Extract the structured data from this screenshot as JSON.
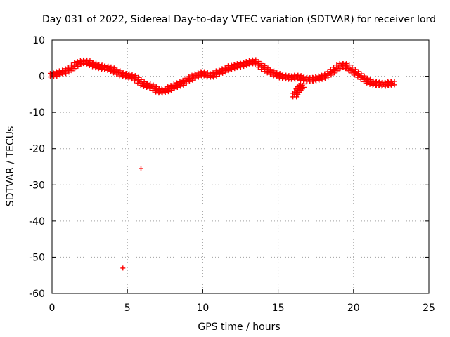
{
  "chart_data": {
    "type": "scatter",
    "title": "Day 031 of 2022, Sidereal Day-to-day VTEC variation (SDTVAR) for receiver lord",
    "xlabel": "GPS time / hours",
    "ylabel": "SDTVAR / TECUs",
    "xlim": [
      0,
      25
    ],
    "ylim": [
      -60,
      10
    ],
    "xticks": [
      0,
      5,
      10,
      15,
      20,
      25
    ],
    "yticks": [
      10,
      0,
      -10,
      -20,
      -30,
      -40,
      -50,
      -60
    ],
    "grid": true,
    "marker": "+",
    "color": "#ff0000",
    "series": [
      {
        "name": "SDTVAR",
        "x": [
          0.0,
          0.2,
          0.4,
          0.6,
          0.8,
          1.0,
          1.2,
          1.4,
          1.6,
          1.8,
          2.0,
          2.2,
          2.4,
          2.6,
          2.8,
          3.0,
          3.2,
          3.4,
          3.6,
          3.8,
          4.0,
          4.2,
          4.4,
          4.6,
          4.8,
          5.0,
          5.2,
          5.4,
          5.6,
          5.8,
          6.0,
          6.2,
          6.4,
          6.6,
          6.8,
          7.0,
          7.2,
          7.4,
          7.6,
          7.8,
          8.0,
          8.2,
          8.4,
          8.6,
          8.8,
          9.0,
          9.2,
          9.4,
          9.6,
          9.8,
          10.0,
          10.2,
          10.4,
          10.6,
          10.8,
          11.0,
          11.2,
          11.4,
          11.6,
          11.8,
          12.0,
          12.2,
          12.4,
          12.6,
          12.8,
          13.0,
          13.2,
          13.4,
          13.6,
          13.8,
          14.0,
          14.2,
          14.4,
          14.6,
          14.8,
          15.0,
          15.2,
          15.4,
          15.6,
          15.8,
          16.0,
          16.2,
          16.4,
          16.6,
          16.8,
          17.0,
          17.2,
          17.4,
          17.6,
          17.8,
          18.0,
          18.2,
          18.4,
          18.6,
          18.8,
          19.0,
          19.2,
          19.4,
          19.6,
          19.8,
          20.0,
          20.2,
          20.4,
          20.6,
          20.8,
          21.0,
          21.2,
          21.4,
          21.6,
          21.8,
          22.0,
          22.2,
          22.4,
          22.6,
          16.1,
          16.2,
          16.3,
          16.4,
          16.5,
          16.6,
          5.9,
          4.7
        ],
        "y": [
          0.3,
          0.5,
          0.8,
          1.0,
          1.2,
          1.6,
          2.0,
          2.6,
          3.2,
          3.6,
          3.9,
          4.0,
          3.8,
          3.4,
          3.1,
          2.8,
          2.6,
          2.4,
          2.3,
          2.1,
          1.8,
          1.4,
          1.0,
          0.6,
          0.3,
          0.2,
          0.0,
          -0.3,
          -0.8,
          -1.4,
          -2.0,
          -2.4,
          -2.6,
          -2.9,
          -3.4,
          -3.9,
          -4.2,
          -4.0,
          -3.8,
          -3.4,
          -3.0,
          -2.6,
          -2.3,
          -2.0,
          -1.6,
          -1.0,
          -0.6,
          -0.2,
          0.2,
          0.6,
          0.8,
          0.6,
          0.2,
          0.2,
          0.5,
          1.0,
          1.3,
          1.6,
          2.0,
          2.4,
          2.6,
          2.8,
          3.0,
          3.2,
          3.4,
          3.6,
          3.9,
          4.1,
          3.6,
          3.0,
          2.4,
          1.8,
          1.4,
          1.0,
          0.6,
          0.3,
          0.0,
          -0.2,
          -0.3,
          -0.4,
          -0.4,
          -0.2,
          -0.3,
          -0.6,
          -0.8,
          -0.9,
          -0.9,
          -0.8,
          -0.6,
          -0.4,
          -0.2,
          0.2,
          0.8,
          1.4,
          2.0,
          2.6,
          3.0,
          3.0,
          2.6,
          2.0,
          1.4,
          0.8,
          0.2,
          -0.4,
          -1.0,
          -1.4,
          -1.8,
          -2.0,
          -2.1,
          -2.2,
          -2.3,
          -2.2,
          -2.0,
          -1.9,
          -5.2,
          -4.6,
          -4.0,
          -3.4,
          -3.0,
          -2.6,
          -25.5,
          -53.0
        ]
      }
    ]
  }
}
